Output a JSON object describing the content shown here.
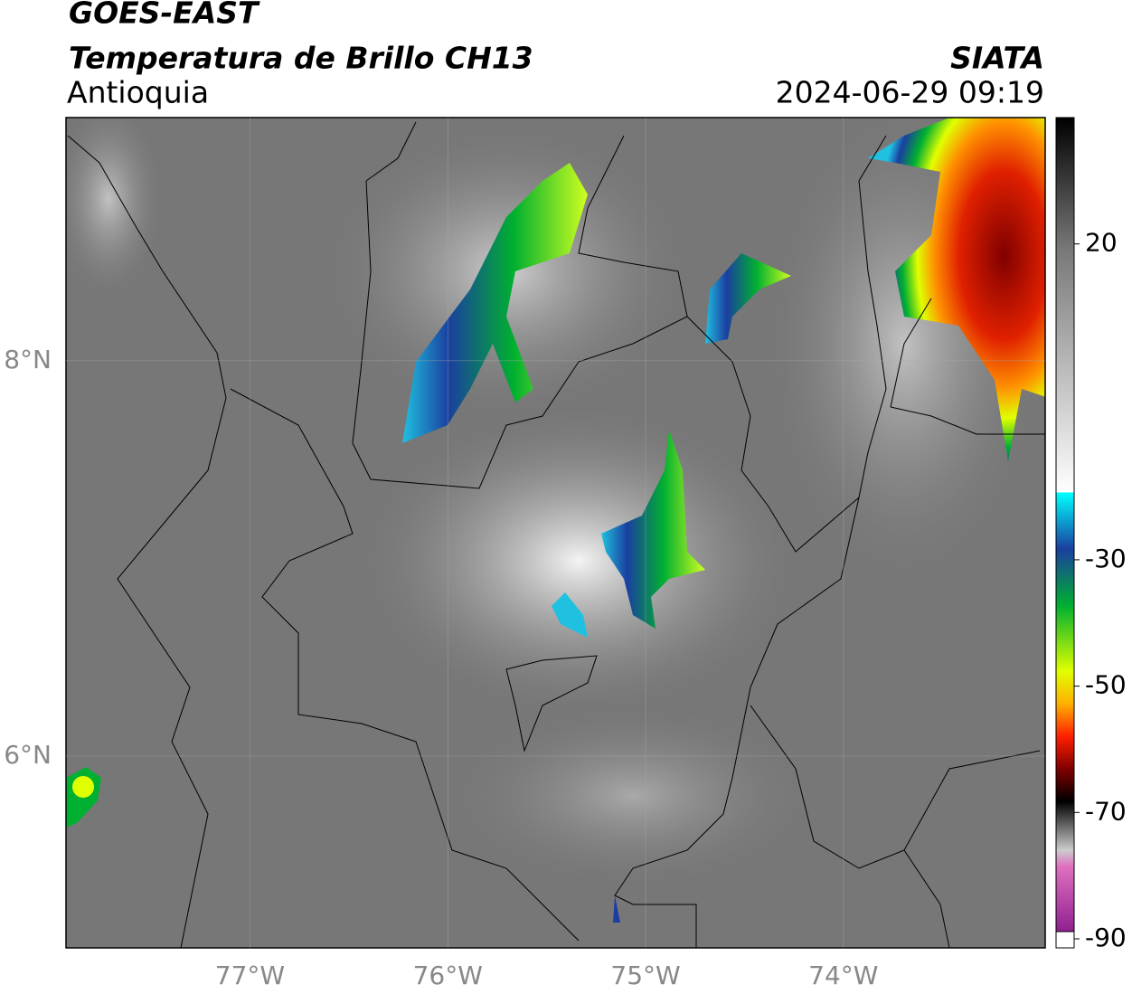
{
  "chart_data": {
    "type": "map",
    "title": "GOES-EAST",
    "subtitle": "Temperatura de Brillo CH13",
    "region": "Antioquia",
    "source": "SIATA",
    "timestamp": "2024-06-29 09:19",
    "xlim": [
      -77.93,
      -72.98
    ],
    "ylim": [
      5.03,
      9.23
    ],
    "xticks": [
      {
        "value": -77,
        "label": "77°W"
      },
      {
        "value": -76,
        "label": "76°W"
      },
      {
        "value": -75,
        "label": "75°W"
      },
      {
        "value": -74,
        "label": "74°W"
      }
    ],
    "yticks": [
      {
        "value": 6,
        "label": "6°N"
      },
      {
        "value": 8,
        "label": "8°N"
      }
    ],
    "grid": true,
    "colorbar": {
      "range": [
        -90,
        40
      ],
      "ticks": [
        20,
        -30,
        -50,
        -70,
        -90
      ]
    }
  }
}
